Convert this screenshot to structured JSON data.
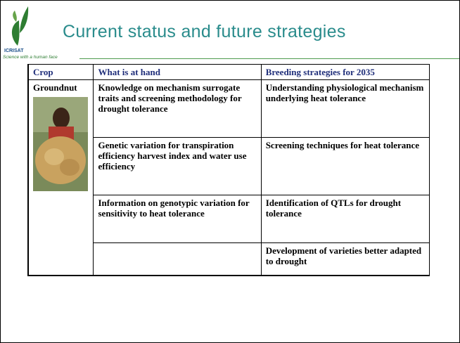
{
  "header": {
    "logo": "ICRISAT",
    "tagline": "Science with a human face",
    "title": "Current status and future strategies"
  },
  "table": {
    "columns": [
      "Crop",
      "What is at hand",
      "Breeding strategies for 2035"
    ],
    "crop": "Groundnut",
    "rows": [
      {
        "at_hand": "Knowledge on mechanism surrogate traits and screening methodology for drought tolerance",
        "strategy": "Understanding physiological mechanism underlying heat tolerance"
      },
      {
        "at_hand": "Genetic variation for transpiration efficiency harvest index and water use efficiency",
        "strategy": "Screening techniques for heat tolerance"
      },
      {
        "at_hand": "Information on genotypic variation for sensitivity to heat tolerance",
        "strategy": "Identification of QTLs for drought tolerance"
      },
      {
        "strategy": "Development of varieties better adapted to drought"
      }
    ]
  }
}
